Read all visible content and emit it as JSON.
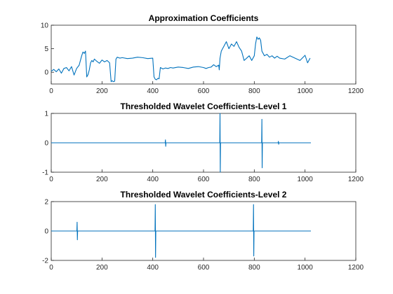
{
  "figure": {
    "line_color": "#0072bd"
  },
  "chart_data": [
    {
      "type": "line",
      "title": "Approximation Coefficients",
      "xlabel": "",
      "ylabel": "",
      "xlim": [
        0,
        1200
      ],
      "ylim": [
        -2.5,
        10
      ],
      "xticks": [
        0,
        200,
        400,
        600,
        800,
        1000,
        1200
      ],
      "yticks": [
        0,
        5,
        10
      ],
      "grid": false,
      "series": [
        {
          "x": [
            0,
            10,
            20,
            30,
            40,
            50,
            60,
            70,
            80,
            90,
            100,
            110,
            120,
            125,
            130,
            135,
            140,
            145,
            150,
            155,
            160,
            165,
            170,
            180,
            190,
            200,
            210,
            220,
            230,
            236,
            240,
            245,
            250,
            255,
            260,
            270,
            280,
            300,
            320,
            340,
            360,
            380,
            400,
            405,
            410,
            415,
            420,
            425,
            430,
            440,
            450,
            460,
            470,
            480,
            500,
            520,
            540,
            560,
            580,
            600,
            610,
            620,
            630,
            640,
            650,
            660,
            662,
            665,
            670,
            680,
            690,
            700,
            710,
            720,
            730,
            740,
            750,
            760,
            770,
            780,
            790,
            800,
            805,
            810,
            815,
            820,
            825,
            830,
            840,
            850,
            860,
            870,
            880,
            890,
            900,
            920,
            940,
            960,
            980,
            1000,
            1010,
            1020
          ],
          "y": [
            0.2,
            0.6,
            0.1,
            0.7,
            -0.2,
            0.8,
            1.0,
            0.3,
            1.2,
            -0.6,
            0.8,
            1.5,
            3.5,
            4.3,
            4.0,
            4.5,
            -1.0,
            -0.5,
            0.5,
            2.0,
            2.5,
            2.2,
            2.8,
            2.3,
            1.9,
            2.6,
            2.2,
            2.5,
            2.0,
            -2.0,
            -1.8,
            -2.0,
            -1.9,
            2.8,
            3.2,
            3.0,
            3.1,
            2.9,
            3.0,
            3.2,
            3.1,
            2.9,
            3.0,
            -1.0,
            -1.5,
            -1.6,
            -1.3,
            -1.4,
            1.0,
            0.7,
            0.9,
            0.8,
            1.0,
            0.9,
            1.1,
            1.0,
            0.8,
            1.1,
            1.2,
            1.0,
            0.8,
            1.0,
            1.1,
            1.6,
            1.2,
            1.5,
            0.5,
            3.0,
            4.5,
            5.5,
            6.5,
            5.0,
            6.0,
            5.5,
            6.5,
            5.3,
            4.5,
            2.5,
            3.0,
            3.5,
            2.5,
            3.5,
            6.0,
            7.5,
            7.0,
            7.3,
            6.8,
            4.5,
            3.5,
            3.8,
            3.2,
            3.5,
            3.0,
            3.4,
            3.0,
            2.8,
            3.5,
            3.0,
            2.5,
            3.6,
            2.0,
            3.0
          ]
        }
      ]
    },
    {
      "type": "line",
      "title": "Thresholded Wavelet Coefficients-Level 1",
      "xlabel": "",
      "ylabel": "",
      "xlim": [
        0,
        1200
      ],
      "ylim": [
        -1,
        1
      ],
      "xticks": [
        0,
        200,
        400,
        600,
        800,
        1000,
        1200
      ],
      "yticks": [
        -1,
        0,
        1
      ],
      "grid": false,
      "series": [
        {
          "x": [
            0,
            449,
            450,
            451,
            452,
            453,
            664,
            665,
            666,
            667,
            668,
            829,
            830,
            831,
            832,
            833,
            894,
            895,
            896,
            897,
            1023
          ],
          "y": [
            0,
            0,
            0.1,
            -0.12,
            0,
            0,
            0,
            1.05,
            -1.1,
            0,
            0,
            0,
            0.8,
            -0.85,
            0,
            0,
            0,
            0.05,
            -0.05,
            0,
            0
          ]
        }
      ]
    },
    {
      "type": "line",
      "title": "Thresholded Wavelet Coefficients-Level 2",
      "xlabel": "",
      "ylabel": "",
      "xlim": [
        0,
        1200
      ],
      "ylim": [
        -2,
        2
      ],
      "xticks": [
        0,
        200,
        400,
        600,
        800,
        1000,
        1200
      ],
      "yticks": [
        -2,
        0,
        2
      ],
      "grid": false,
      "series": [
        {
          "x": [
            0,
            101,
            102,
            103,
            104,
            409,
            410,
            411,
            412,
            413,
            796,
            797,
            798,
            799,
            800,
            1023
          ],
          "y": [
            0,
            0,
            0.6,
            -0.6,
            0,
            0,
            1.8,
            -1.8,
            0,
            0,
            0,
            1.8,
            -1.7,
            0,
            0,
            0
          ]
        }
      ]
    }
  ]
}
